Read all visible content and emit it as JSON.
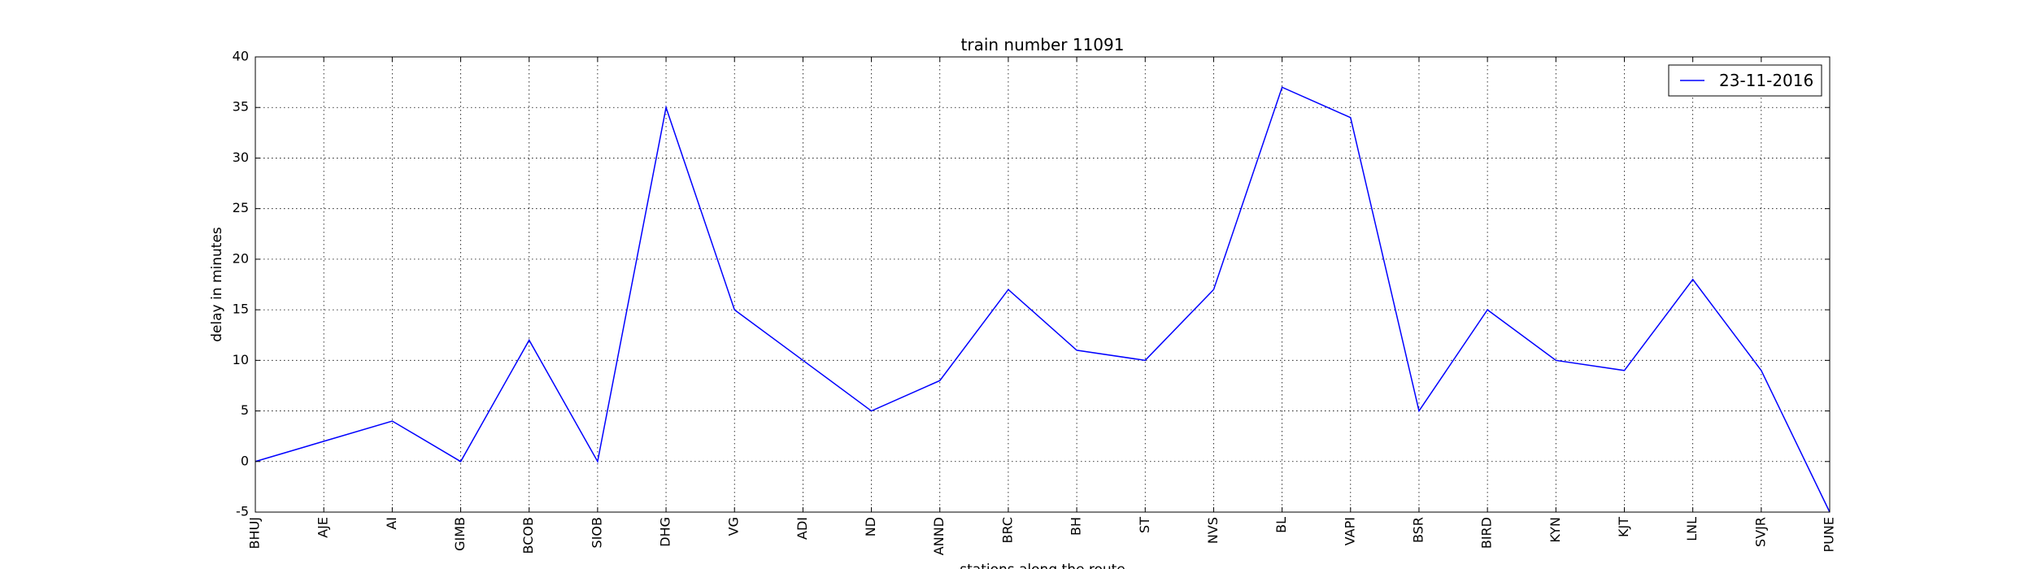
{
  "chart_data": {
    "type": "line",
    "title": "train number 11091",
    "xlabel": "stations along the route",
    "ylabel": "delay in minutes",
    "categories": [
      "BHUJ",
      "AJE",
      "AI",
      "GIMB",
      "BCOB",
      "SIOB",
      "DHG",
      "VG",
      "ADI",
      "ND",
      "ANND",
      "BRC",
      "BH",
      "ST",
      "NVS",
      "BL",
      "VAPI",
      "BSR",
      "BIRD",
      "KYN",
      "KJT",
      "LNL",
      "SVJR",
      "PUNE"
    ],
    "series": [
      {
        "name": "23-11-2016",
        "color": "#0000ff",
        "values": [
          0,
          2,
          4,
          0,
          12,
          0,
          35,
          15,
          10,
          5,
          8,
          17,
          11,
          10,
          17,
          37,
          34,
          5,
          15,
          10,
          9,
          18,
          9,
          -5
        ]
      }
    ],
    "yticks": [
      -5,
      0,
      5,
      10,
      15,
      20,
      25,
      30,
      35,
      40
    ],
    "ylim": [
      -5,
      40
    ],
    "grid": true,
    "legend_position": "top-right"
  }
}
